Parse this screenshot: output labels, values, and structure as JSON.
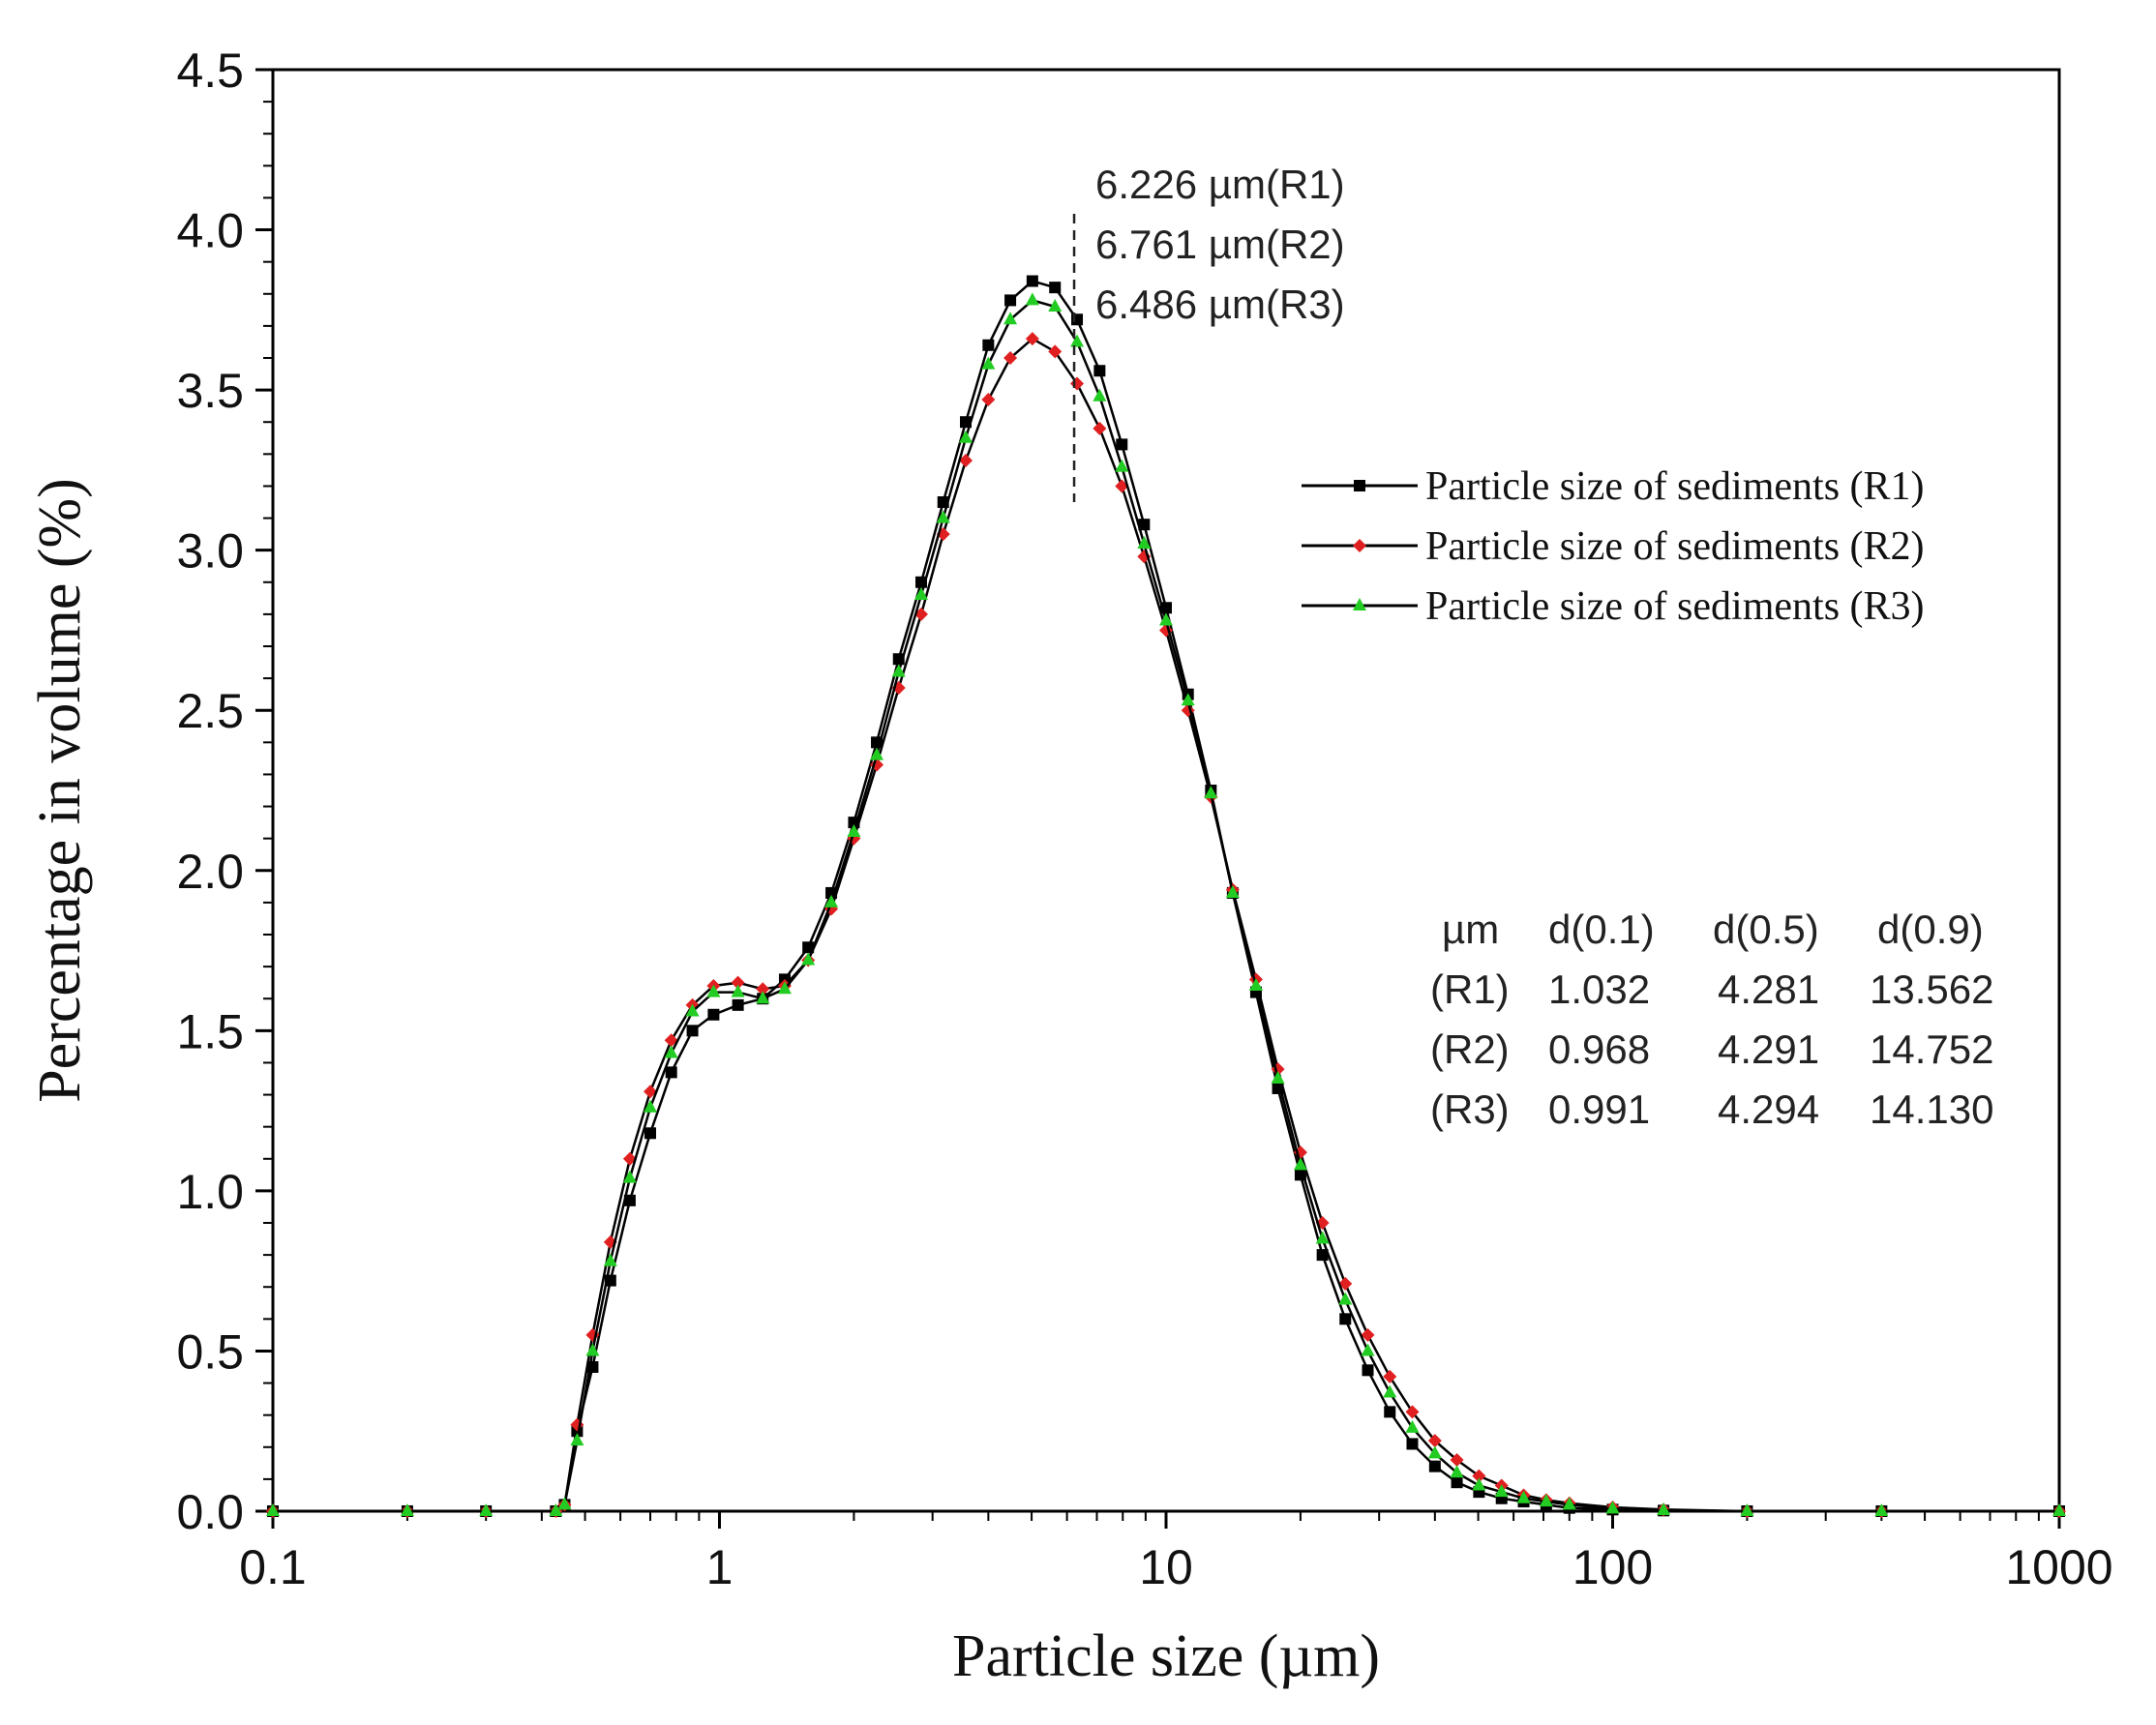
{
  "chart_data": {
    "type": "line",
    "title": "",
    "xlabel": "Particle size (µm)",
    "ylabel": "Percentage in volume (%)",
    "xscale": "log",
    "xlim": [
      0.1,
      1000
    ],
    "ylim": [
      0,
      4.5
    ],
    "x_ticks": [
      0.1,
      1,
      10,
      100,
      1000
    ],
    "x_tick_labels": [
      "0.1",
      "1",
      "10",
      "100",
      "1000"
    ],
    "y_ticks": [
      0,
      0.5,
      1,
      1.5,
      2,
      2.5,
      3,
      3.5,
      4,
      4.5
    ],
    "y_tick_labels": [
      "0.0",
      "0.5",
      "1.0",
      "1.5",
      "2.0",
      "2.5",
      "3.0",
      "3.5",
      "4.0",
      "4.5"
    ],
    "grid": false,
    "legend_position": "right",
    "series": [
      {
        "name": "Particle size of sediments (R1)",
        "color": "#000000",
        "marker": "square",
        "points": [
          [
            0.1,
            0
          ],
          [
            0.2,
            0
          ],
          [
            0.3,
            0
          ],
          [
            0.43,
            0
          ],
          [
            0.45,
            0.02
          ],
          [
            0.48,
            0.25
          ],
          [
            0.52,
            0.45
          ],
          [
            0.57,
            0.72
          ],
          [
            0.63,
            0.97
          ],
          [
            0.7,
            1.18
          ],
          [
            0.78,
            1.37
          ],
          [
            0.87,
            1.5
          ],
          [
            0.97,
            1.55
          ],
          [
            1.1,
            1.58
          ],
          [
            1.25,
            1.6
          ],
          [
            1.4,
            1.66
          ],
          [
            1.58,
            1.76
          ],
          [
            1.78,
            1.93
          ],
          [
            2,
            2.15
          ],
          [
            2.25,
            2.4
          ],
          [
            2.52,
            2.66
          ],
          [
            2.83,
            2.9
          ],
          [
            3.17,
            3.15
          ],
          [
            3.56,
            3.4
          ],
          [
            4,
            3.64
          ],
          [
            4.48,
            3.78
          ],
          [
            5.02,
            3.84
          ],
          [
            5.64,
            3.82
          ],
          [
            6.32,
            3.72
          ],
          [
            7.1,
            3.56
          ],
          [
            7.96,
            3.33
          ],
          [
            8.93,
            3.08
          ],
          [
            10,
            2.82
          ],
          [
            11.2,
            2.55
          ],
          [
            12.6,
            2.25
          ],
          [
            14.1,
            1.93
          ],
          [
            15.9,
            1.62
          ],
          [
            17.8,
            1.32
          ],
          [
            20,
            1.05
          ],
          [
            22.4,
            0.8
          ],
          [
            25.2,
            0.6
          ],
          [
            28.3,
            0.44
          ],
          [
            31.7,
            0.31
          ],
          [
            35.6,
            0.21
          ],
          [
            40,
            0.14
          ],
          [
            44.8,
            0.09
          ],
          [
            50.2,
            0.06
          ],
          [
            56.4,
            0.04
          ],
          [
            63.2,
            0.03
          ],
          [
            71,
            0.02
          ],
          [
            80,
            0.01
          ],
          [
            100,
            0.005
          ],
          [
            130,
            0.002
          ],
          [
            200,
            0
          ],
          [
            400,
            0
          ],
          [
            1000,
            0
          ]
        ]
      },
      {
        "name": "Particle size of sediments (R2)",
        "color": "#e02020",
        "marker": "diamond",
        "points": [
          [
            0.1,
            0
          ],
          [
            0.2,
            0
          ],
          [
            0.3,
            0
          ],
          [
            0.43,
            0
          ],
          [
            0.45,
            0.02
          ],
          [
            0.48,
            0.27
          ],
          [
            0.52,
            0.55
          ],
          [
            0.57,
            0.84
          ],
          [
            0.63,
            1.1
          ],
          [
            0.7,
            1.31
          ],
          [
            0.78,
            1.47
          ],
          [
            0.87,
            1.58
          ],
          [
            0.97,
            1.64
          ],
          [
            1.1,
            1.65
          ],
          [
            1.25,
            1.63
          ],
          [
            1.4,
            1.64
          ],
          [
            1.58,
            1.72
          ],
          [
            1.78,
            1.88
          ],
          [
            2,
            2.1
          ],
          [
            2.25,
            2.33
          ],
          [
            2.52,
            2.57
          ],
          [
            2.83,
            2.8
          ],
          [
            3.17,
            3.05
          ],
          [
            3.56,
            3.28
          ],
          [
            4,
            3.47
          ],
          [
            4.48,
            3.6
          ],
          [
            5.02,
            3.66
          ],
          [
            5.64,
            3.62
          ],
          [
            6.32,
            3.52
          ],
          [
            7.1,
            3.38
          ],
          [
            7.96,
            3.2
          ],
          [
            8.93,
            2.98
          ],
          [
            10,
            2.75
          ],
          [
            11.2,
            2.5
          ],
          [
            12.6,
            2.23
          ],
          [
            14.1,
            1.94
          ],
          [
            15.9,
            1.66
          ],
          [
            17.8,
            1.38
          ],
          [
            20,
            1.12
          ],
          [
            22.4,
            0.9
          ],
          [
            25.2,
            0.71
          ],
          [
            28.3,
            0.55
          ],
          [
            31.7,
            0.42
          ],
          [
            35.6,
            0.31
          ],
          [
            40,
            0.22
          ],
          [
            44.8,
            0.16
          ],
          [
            50.2,
            0.11
          ],
          [
            56.4,
            0.08
          ],
          [
            63.2,
            0.05
          ],
          [
            71,
            0.035
          ],
          [
            80,
            0.025
          ],
          [
            100,
            0.012
          ],
          [
            130,
            0.005
          ],
          [
            200,
            0
          ],
          [
            400,
            0
          ],
          [
            1000,
            0
          ]
        ]
      },
      {
        "name": "Particle size of sediments (R3)",
        "color": "#22cc22",
        "marker": "triangle",
        "points": [
          [
            0.1,
            0
          ],
          [
            0.2,
            0
          ],
          [
            0.3,
            0
          ],
          [
            0.43,
            0
          ],
          [
            0.45,
            0.02
          ],
          [
            0.48,
            0.22
          ],
          [
            0.52,
            0.5
          ],
          [
            0.57,
            0.78
          ],
          [
            0.63,
            1.04
          ],
          [
            0.7,
            1.26
          ],
          [
            0.78,
            1.43
          ],
          [
            0.87,
            1.56
          ],
          [
            0.97,
            1.62
          ],
          [
            1.1,
            1.62
          ],
          [
            1.25,
            1.6
          ],
          [
            1.4,
            1.63
          ],
          [
            1.58,
            1.72
          ],
          [
            1.78,
            1.9
          ],
          [
            2,
            2.12
          ],
          [
            2.25,
            2.36
          ],
          [
            2.52,
            2.62
          ],
          [
            2.83,
            2.86
          ],
          [
            3.17,
            3.1
          ],
          [
            3.56,
            3.35
          ],
          [
            4,
            3.58
          ],
          [
            4.48,
            3.72
          ],
          [
            5.02,
            3.78
          ],
          [
            5.64,
            3.76
          ],
          [
            6.32,
            3.65
          ],
          [
            7.1,
            3.48
          ],
          [
            7.96,
            3.26
          ],
          [
            8.93,
            3.02
          ],
          [
            10,
            2.78
          ],
          [
            11.2,
            2.53
          ],
          [
            12.6,
            2.24
          ],
          [
            14.1,
            1.93
          ],
          [
            15.9,
            1.64
          ],
          [
            17.8,
            1.35
          ],
          [
            20,
            1.08
          ],
          [
            22.4,
            0.85
          ],
          [
            25.2,
            0.66
          ],
          [
            28.3,
            0.5
          ],
          [
            31.7,
            0.37
          ],
          [
            35.6,
            0.26
          ],
          [
            40,
            0.18
          ],
          [
            44.8,
            0.12
          ],
          [
            50.2,
            0.08
          ],
          [
            56.4,
            0.06
          ],
          [
            63.2,
            0.04
          ],
          [
            71,
            0.03
          ],
          [
            80,
            0.02
          ],
          [
            100,
            0.008
          ],
          [
            130,
            0.003
          ],
          [
            200,
            0
          ],
          [
            400,
            0
          ],
          [
            1000,
            0
          ]
        ]
      }
    ],
    "annotations": {
      "peak_x": 6.226,
      "peak_line_y_range": [
        3.15,
        4.05
      ],
      "lines": [
        "6.226 µm(R1)",
        "6.761 µm(R2)",
        "6.486 µm(R3)"
      ]
    },
    "table": {
      "header": [
        "µm",
        "d(0.1)",
        "d(0.5)",
        "d(0.9)"
      ],
      "rows": [
        [
          "(R1)",
          "1.032",
          "4.281",
          "13.562"
        ],
        [
          "(R2)",
          "0.968",
          "4.291",
          "14.752"
        ],
        [
          "(R3)",
          "0.991",
          "4.294",
          "14.130"
        ]
      ]
    }
  }
}
